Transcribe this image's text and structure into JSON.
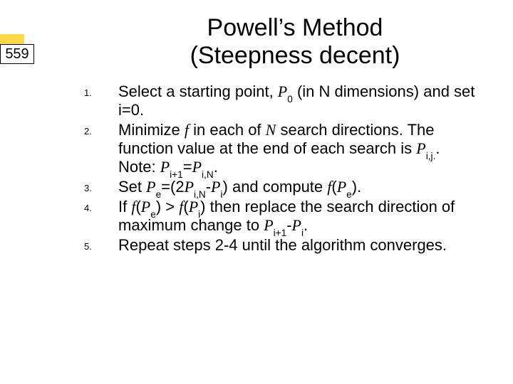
{
  "accent_color": "#ffd845",
  "page_number": "559",
  "title_line1": "Powell’s Method",
  "title_line2": "(Steepness decent)",
  "items": [
    {
      "num": "1.",
      "html": "Select a starting point, <span class='it'>P</span><sub>0</sub> (in N dimensions) and set i=0."
    },
    {
      "num": "2.",
      "html": "Minimize <span class='it'>f</span> in each of <span class='it'>N</span> search directions. The function value at the end of each search is <span class='it'>P</span><sub>i,j.</sub>. Note: <span class='it'>P</span><sub>i+1</sub>=<span class='it'>P</span><sub>i,N</sub>."
    },
    {
      "num": "3.",
      "html": "Set <span class='it'>P</span><sub>e</sub>=(2<span class='it'>P</span><sub>i,N</sub>-<span class='it'>P</span><sub>i</sub>) and compute <span class='it'>f</span>(<span class='it'>P</span><sub>e</sub>)."
    },
    {
      "num": "4.",
      "html": "If <span class='it'>f</span>(<span class='it'>P</span><sub>e</sub>) &gt; <span class='it'>f</span>(<span class='it'>P</span><sub>i</sub>) then replace the search direction of maximum change to <span class='it'>P</span><sub>i+1</sub>-<span class='it'>P</span><sub>i</sub>."
    },
    {
      "num": "5.",
      "html": "Repeat steps 2-4 until the algorithm converges."
    }
  ]
}
